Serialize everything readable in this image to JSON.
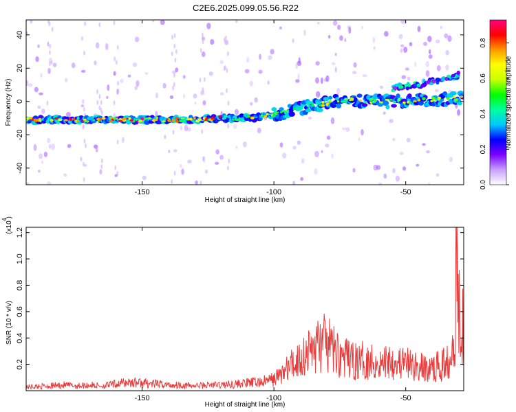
{
  "title": "C2E6.2025.099.05.56.R22",
  "colors": {
    "snr_line": "#e83c3c",
    "axis": "#000000"
  },
  "chart_data": [
    {
      "type": "heatmap",
      "xlabel": "Height of straight line (km)",
      "ylabel": "Frequency (Hz)",
      "xlim": [
        -194,
        -28
      ],
      "ylim": [
        -50,
        49
      ],
      "x_ticks": [
        -150,
        -100,
        -50
      ],
      "x_tick_labels": [
        "-150",
        "-100",
        "-50"
      ],
      "y_ticks": [
        -40,
        -20,
        0,
        20,
        40
      ],
      "y_tick_labels": [
        "-40",
        "-20",
        "0",
        "20",
        "40"
      ],
      "ridge": {
        "x": [
          -194,
          -170,
          -150,
          -130,
          -120,
          -110,
          -100,
          -90,
          -80,
          -70,
          -60,
          -50,
          -40,
          -28
        ],
        "y": [
          -11,
          -11,
          -11,
          -11,
          -10,
          -10,
          -8,
          -4,
          -1,
          1,
          0,
          0,
          1,
          2
        ]
      },
      "upper_branch": {
        "x": [
          -55,
          -50,
          -45,
          -40,
          -35,
          -30
        ],
        "y": [
          8,
          9,
          10,
          12,
          14,
          16
        ]
      },
      "colorbar": {
        "label": "Normalized spectral amplitude",
        "range": [
          0,
          0.93
        ],
        "ticks": [
          0.0,
          0.2,
          0.4,
          0.6,
          0.8
        ],
        "tick_labels": [
          "0.0",
          "0.2",
          "0.4",
          "0.6",
          "0.8"
        ],
        "colors": [
          "#ffffff",
          "#c8a0ff",
          "#7d00ff",
          "#0000ff",
          "#00c8ff",
          "#00ffa0",
          "#00ff00",
          "#c8ff00",
          "#ffff00",
          "#ff9900",
          "#ff0000",
          "#ff0080"
        ]
      }
    },
    {
      "type": "line",
      "xlabel": "Height of straight line (km)",
      "ylabel": "SNR (10 * v/v)",
      "y_multiplier": "(x10 )",
      "y_multiplier_exp": "4",
      "xlim": [
        -194,
        -28
      ],
      "ylim": [
        0,
        1.24
      ],
      "x_ticks": [
        -150,
        -100,
        -50
      ],
      "x_tick_labels": [
        "-150",
        "-100",
        "-50"
      ],
      "y_ticks": [
        0.2,
        0.4,
        0.6,
        0.8,
        1.0,
        1.2
      ],
      "y_tick_labels": [
        "0.2",
        "0.4",
        "0.6",
        "0.8",
        "1.0",
        "1.2"
      ],
      "series": [
        {
          "x": [
            -194,
            -185,
            -180,
            -175,
            -170,
            -165,
            -160,
            -155,
            -150,
            -145,
            -140,
            -135,
            -130,
            -125,
            -120,
            -115,
            -110,
            -105,
            -100,
            -97,
            -94,
            -91,
            -88,
            -85,
            -82,
            -80,
            -77,
            -74,
            -71,
            -68,
            -65,
            -62,
            -59,
            -56,
            -53,
            -50,
            -47,
            -44,
            -41,
            -38,
            -35,
            -33,
            -32,
            -31,
            -30,
            -29,
            -28
          ],
          "y": [
            0.04,
            0.05,
            0.06,
            0.05,
            0.06,
            0.05,
            0.07,
            0.09,
            0.08,
            0.07,
            0.06,
            0.06,
            0.05,
            0.06,
            0.06,
            0.07,
            0.08,
            0.09,
            0.12,
            0.18,
            0.25,
            0.32,
            0.38,
            0.45,
            0.5,
            0.48,
            0.42,
            0.35,
            0.32,
            0.3,
            0.33,
            0.3,
            0.28,
            0.34,
            0.3,
            0.28,
            0.26,
            0.24,
            0.22,
            0.25,
            0.28,
            0.4,
            0.55,
            0.7,
            0.85,
            0.9,
            0.6
          ]
        }
      ]
    }
  ]
}
